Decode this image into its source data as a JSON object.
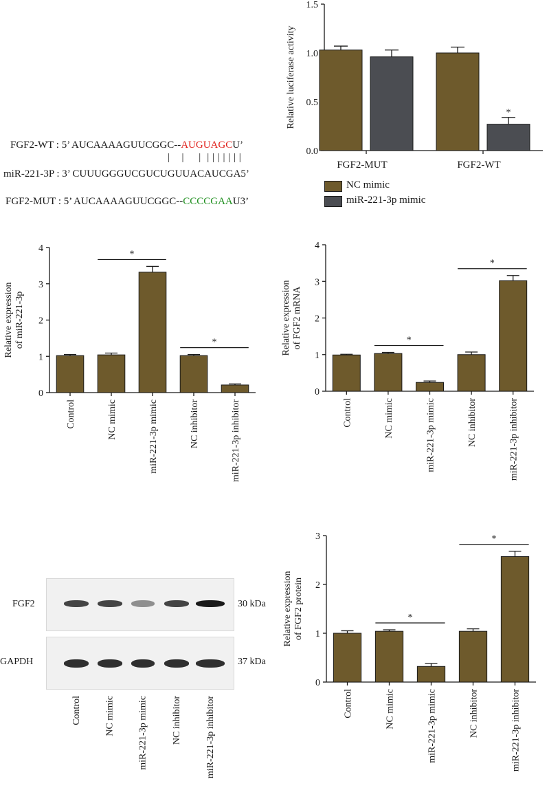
{
  "sequences": {
    "wt": {
      "prefix": "FGF2-WT : 5’ AUCAAAAGUUCGGC--",
      "highlight": "AUGUAGC",
      "suffix": "U’"
    },
    "pairing": "|    |     |  | | | | | | |",
    "mir": {
      "text": "miR-221-3P : 3’ CUUUGGGUCGUCUGUUACAUCGA5’"
    },
    "mut": {
      "prefix": "FGF2-MUT : 5’ AUCAAAAGUUCGGC--",
      "highlight": "CCCCGAA",
      "suffix": "U3’"
    }
  },
  "colors": {
    "nc": "#6e5a2c",
    "mir_mimic": "#4b4d52",
    "red": "#e0201b",
    "green": "#1e8f1e"
  },
  "legend": {
    "nc": "NC mimic",
    "mir": "miR-221-3p mimic"
  },
  "blot": {
    "rows": [
      "FGF2",
      "GAPDH"
    ],
    "sizes": [
      "30 kDa",
      "37 kDa"
    ],
    "lanes": [
      "Control",
      "NC mimic",
      "miR-221-3p mimic",
      "NC inhibitor",
      "miR-221-3p inhibitor"
    ],
    "fgf2_intensity": [
      0.8,
      0.8,
      0.45,
      0.8,
      1.0
    ],
    "gapdh_intensity": [
      0.9,
      0.9,
      0.9,
      0.9,
      0.9
    ]
  },
  "chart_data": [
    {
      "id": "luciferase",
      "type": "bar",
      "categories": [
        "FGF2-MUT",
        "FGF2-WT"
      ],
      "series": [
        {
          "name": "NC mimic",
          "values": [
            1.03,
            1.0
          ],
          "errors": [
            0.04,
            0.06
          ]
        },
        {
          "name": "miR-221-3p mimic",
          "values": [
            0.96,
            0.27
          ],
          "errors": [
            0.07,
            0.07
          ]
        }
      ],
      "ylabel": "Relative luciferase activity",
      "ylim": [
        0,
        1.5
      ],
      "yticks": [
        "0.0",
        "0.5",
        "1.0",
        "1.5"
      ],
      "significance": [
        {
          "category": "FGF2-WT",
          "label": "*"
        }
      ]
    },
    {
      "id": "mir-expression",
      "type": "bar",
      "categories": [
        "Control",
        "NC mimic",
        "miR-221-3p mimic",
        "NC inhibitor",
        "miR-221-3p inhibitor"
      ],
      "values": [
        1.02,
        1.04,
        3.32,
        1.02,
        0.21
      ],
      "errors": [
        0.03,
        0.05,
        0.16,
        0.03,
        0.03
      ],
      "ylabel": [
        "Relative expression",
        "of miR-221-3p"
      ],
      "ylim": [
        0,
        4
      ],
      "yticks": [
        "0",
        "1",
        "2",
        "3",
        "4"
      ],
      "significance": [
        {
          "from": 1,
          "to": 2,
          "label": "*"
        },
        {
          "from": 3,
          "to": 4,
          "label": "*"
        }
      ]
    },
    {
      "id": "fgf2-mrna",
      "type": "bar",
      "categories": [
        "Control",
        "NC mimic",
        "miR-221-3p mimic",
        "NC inhibitor",
        "miR-221-3p inhibitor"
      ],
      "values": [
        0.99,
        1.03,
        0.24,
        1.0,
        3.02
      ],
      "errors": [
        0.02,
        0.03,
        0.04,
        0.07,
        0.14
      ],
      "ylabel": [
        "Relative expression",
        "of FGF2 mRNA"
      ],
      "ylim": [
        0,
        4
      ],
      "yticks": [
        "0",
        "1",
        "2",
        "3",
        "4"
      ],
      "significance": [
        {
          "from": 1,
          "to": 2,
          "label": "*"
        },
        {
          "from": 3,
          "to": 4,
          "label": "*"
        }
      ]
    },
    {
      "id": "fgf2-protein",
      "type": "bar",
      "categories": [
        "Control",
        "NC mimic",
        "miR-221-3p mimic",
        "NC inhibitor",
        "miR-221-3p inhibitor"
      ],
      "values": [
        1.0,
        1.04,
        0.32,
        1.04,
        2.57
      ],
      "errors": [
        0.05,
        0.03,
        0.06,
        0.05,
        0.11
      ],
      "ylabel": [
        "Relative expression",
        "of FGF2 protein"
      ],
      "ylim": [
        0,
        3
      ],
      "yticks": [
        "0",
        "1",
        "2",
        "3"
      ],
      "significance": [
        {
          "from": 1,
          "to": 2,
          "label": "*"
        },
        {
          "from": 3,
          "to": 4,
          "label": "*"
        }
      ]
    }
  ]
}
